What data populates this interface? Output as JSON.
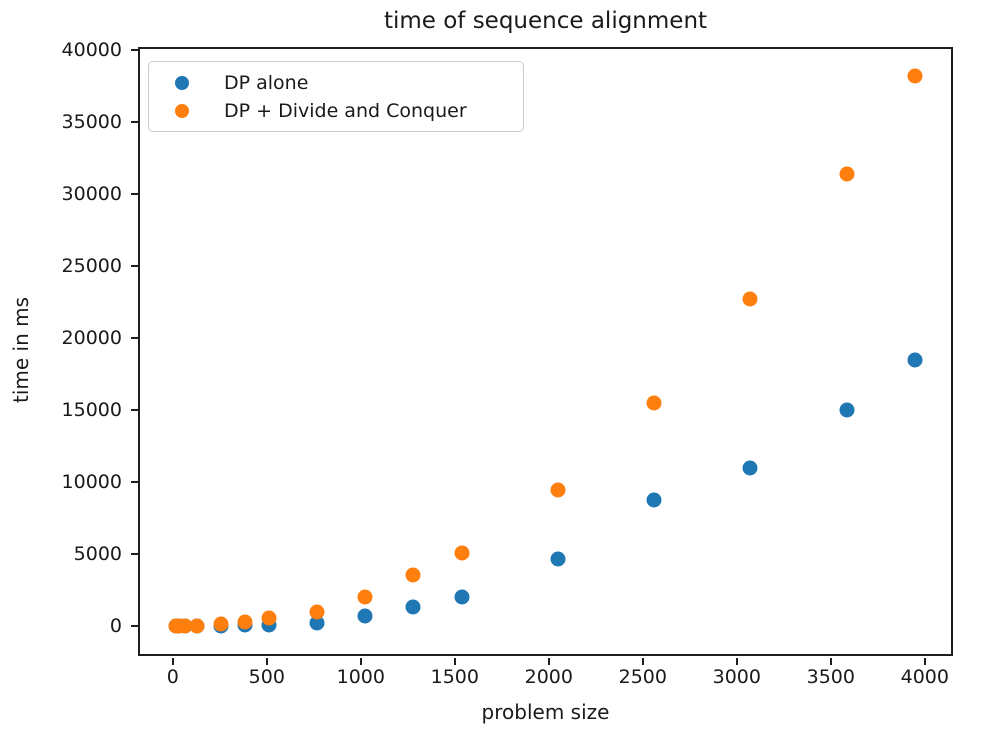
{
  "title": "time of sequence alignment",
  "axes": {
    "xlabel": "problem size",
    "ylabel": "time in ms"
  },
  "legend": {
    "items": [
      {
        "label": "DP alone",
        "color": "#1f77b4"
      },
      {
        "label": "DP + Divide and Conquer",
        "color": "#ff7f0e"
      }
    ]
  },
  "colors": {
    "series_blue": "#1f77b4",
    "series_orange": "#ff7f0e",
    "axis": "#1f1f1f",
    "text": "#1a1a1a",
    "legend_border": "#cccccc"
  },
  "chart_data": {
    "type": "scatter",
    "title": "time of sequence alignment",
    "xlabel": "problem size",
    "ylabel": "time in ms",
    "grid": false,
    "legend_position": "upper left",
    "xlim": [
      -185,
      4150
    ],
    "ylim": [
      -2050,
      40200
    ],
    "xticks": [
      0,
      500,
      1000,
      1500,
      2000,
      2500,
      3000,
      3500,
      4000
    ],
    "yticks": [
      0,
      5000,
      10000,
      15000,
      20000,
      25000,
      30000,
      35000,
      40000
    ],
    "x": [
      16,
      32,
      64,
      128,
      256,
      384,
      512,
      768,
      1024,
      1280,
      1536,
      2048,
      2560,
      3072,
      3584,
      3950
    ],
    "series": [
      {
        "name": "DP alone",
        "color": "#1f77b4",
        "values": [
          2,
          4,
          8,
          15,
          40,
          70,
          110,
          250,
          750,
          1350,
          2050,
          4650,
          8800,
          11000,
          15000,
          18500
        ]
      },
      {
        "name": "DP + Divide and Conquer",
        "color": "#ff7f0e",
        "values": [
          5,
          10,
          25,
          60,
          140,
          290,
          560,
          1000,
          2050,
          3600,
          5100,
          9500,
          15500,
          22700,
          31400,
          38200
        ]
      }
    ]
  }
}
